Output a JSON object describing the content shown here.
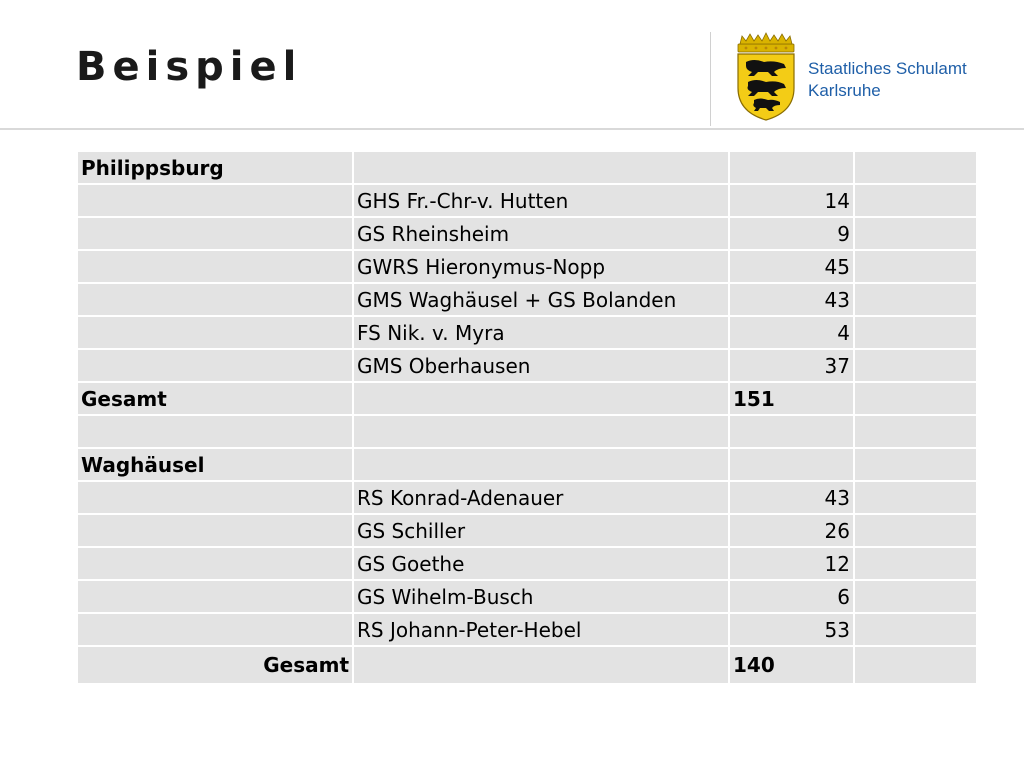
{
  "slide": {
    "title": "Beispiel",
    "org_line1": "Staatliches Schulamt",
    "org_line2": "Karlsruhe",
    "colors": {
      "highlight": "#ffff00",
      "cell": "#e3e3e3",
      "org_text": "#1f5fa8"
    }
  },
  "table": {
    "rows": [
      {
        "group": "Philippsburg",
        "school": "",
        "count": "",
        "total": "",
        "highlight": false
      },
      {
        "group": "",
        "school": "GHS Fr.-Chr-v. Hutten",
        "count": "14",
        "total": "",
        "highlight": false
      },
      {
        "group": "",
        "school": "GS Rheinsheim",
        "count": "9",
        "total": "",
        "highlight": false
      },
      {
        "group": "",
        "school": "GWRS Hieronymus-Nopp",
        "count": "45",
        "total": "",
        "highlight": true
      },
      {
        "group": "",
        "school": "GMS Waghäusel + GS Bolanden",
        "count": "43",
        "total": "",
        "highlight": true
      },
      {
        "group": "",
        "school": "FS Nik. v. Myra",
        "count": "4",
        "total": "",
        "highlight": false
      },
      {
        "group": "",
        "school": "GMS Oberhausen",
        "count": "37",
        "total": "",
        "highlight": true
      },
      {
        "group": "Gesamt",
        "school": "",
        "count": "",
        "total": "151",
        "highlight": false
      },
      {
        "group": "",
        "school": "",
        "count": "",
        "total": "",
        "highlight": false
      },
      {
        "group": "Waghäusel",
        "school": "",
        "count": "",
        "total": "",
        "highlight": false
      },
      {
        "group": "",
        "school": "RS Konrad-Adenauer",
        "count": "43",
        "total": "",
        "highlight": false
      },
      {
        "group": "",
        "school": "GS Schiller",
        "count": "26",
        "total": "",
        "highlight": false
      },
      {
        "group": "",
        "school": "GS Goethe",
        "count": "12",
        "total": "",
        "highlight": false
      },
      {
        "group": "",
        "school": "GS Wihelm-Busch",
        "count": "6",
        "total": "",
        "highlight": false
      },
      {
        "group": "",
        "school": "RS Johann-Peter-Hebel",
        "count": "53",
        "total": "",
        "highlight": false
      },
      {
        "group": "Gesamt",
        "school": "",
        "count": "",
        "total": "140",
        "highlight": false
      }
    ]
  }
}
